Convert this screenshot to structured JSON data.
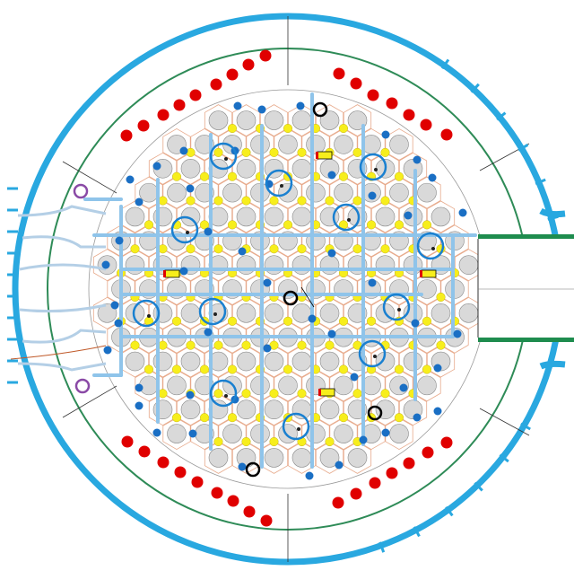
{
  "colors": {
    "outer_vessel": "#29a8e0",
    "inner_ring": "#2e8b57",
    "hex_lattice": "#e7a98a",
    "cell_outline": "#888888",
    "grey_element": "#d9d9d9",
    "yellow_pin": "#f7ee1c",
    "blue_dot": "#1a6fc4",
    "red_dot": "#e00000",
    "channel": "#8fc4ea",
    "circle_marker": "#1a80d0",
    "black_marker": "#000000",
    "purple_marker": "#8a4aa6",
    "port_green": "#1e8c4e"
  },
  "legend_text": "",
  "caption": ""
}
